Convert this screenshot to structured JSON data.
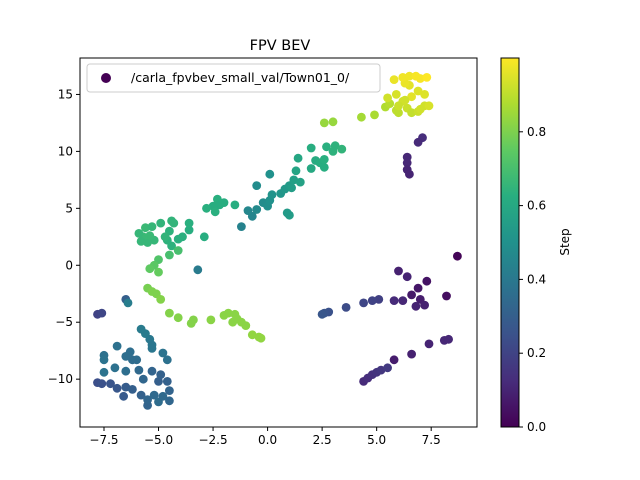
{
  "chart_data": {
    "type": "scatter",
    "title": "FPV BEV",
    "xlabel": "",
    "ylabel": "",
    "xlim": [
      -8.6,
      9.6
    ],
    "ylim": [
      -14.2,
      18.2
    ],
    "x_ticks": [
      -7.5,
      -5.0,
      -2.5,
      0.0,
      2.5,
      5.0,
      7.5
    ],
    "x_tick_labels": [
      "−7.5",
      "−5.0",
      "−2.5",
      "0.0",
      "2.5",
      "5.0",
      "7.5"
    ],
    "y_ticks": [
      -10,
      -5,
      0,
      5,
      10,
      15
    ],
    "y_tick_labels": [
      "−10",
      "−5",
      "0",
      "5",
      "10",
      "15"
    ],
    "grid": false,
    "legend": {
      "position": "top-left",
      "entries": [
        "/carla_fpvbev_small_val/Town01_0/"
      ]
    },
    "colorbar": {
      "label": "Step",
      "colormap": "viridis",
      "range": [
        0.0,
        1.0
      ],
      "ticks": [
        0.0,
        0.2,
        0.4,
        0.6,
        0.8
      ],
      "tick_labels": [
        "0.0",
        "0.2",
        "0.4",
        "0.6",
        "0.8"
      ]
    },
    "series": [
      {
        "name": "/carla_fpvbev_small_val/Town01_0/",
        "columns": [
          "x",
          "y",
          "step"
        ],
        "points": [
          [
            8.7,
            0.8,
            0.01
          ],
          [
            8.2,
            -2.7,
            0.04
          ],
          [
            7.3,
            -1.4,
            0.05
          ],
          [
            6.9,
            -2.0,
            0.06
          ],
          [
            6.6,
            -2.6,
            0.07
          ],
          [
            7.0,
            -3.0,
            0.08
          ],
          [
            7.2,
            -3.5,
            0.09
          ],
          [
            6.8,
            -3.6,
            0.1
          ],
          [
            6.2,
            -3.1,
            0.11
          ],
          [
            5.8,
            -3.1,
            0.12
          ],
          [
            6.4,
            -1.0,
            0.1
          ],
          [
            6.0,
            -0.5,
            0.09
          ],
          [
            5.8,
            -8.3,
            0.08
          ],
          [
            6.6,
            -7.8,
            0.09
          ],
          [
            7.4,
            -6.9,
            0.1
          ],
          [
            8.1,
            -6.6,
            0.11
          ],
          [
            8.3,
            -6.5,
            0.11
          ],
          [
            7.1,
            11.2,
            0.13
          ],
          [
            6.9,
            10.8,
            0.12
          ],
          [
            6.4,
            9.5,
            0.11
          ],
          [
            6.4,
            9.0,
            0.11
          ],
          [
            6.4,
            8.4,
            0.1
          ],
          [
            6.5,
            8.0,
            0.1
          ],
          [
            4.4,
            -10.2,
            0.12
          ],
          [
            4.6,
            -9.9,
            0.13
          ],
          [
            4.8,
            -9.6,
            0.14
          ],
          [
            5.0,
            -9.4,
            0.15
          ],
          [
            5.2,
            -9.2,
            0.16
          ],
          [
            5.5,
            -9.0,
            0.17
          ],
          [
            5.1,
            -3.0,
            0.19
          ],
          [
            4.8,
            -3.1,
            0.2
          ],
          [
            4.4,
            -3.3,
            0.21
          ],
          [
            3.6,
            -3.7,
            0.23
          ],
          [
            2.8,
            -4.1,
            0.25
          ],
          [
            2.6,
            -4.2,
            0.26
          ],
          [
            2.5,
            -4.3,
            0.27
          ],
          [
            -7.8,
            -10.3,
            0.24
          ],
          [
            -7.6,
            -10.4,
            0.25
          ],
          [
            -7.2,
            -10.4,
            0.26
          ],
          [
            -6.9,
            -10.8,
            0.27
          ],
          [
            -6.6,
            -11.5,
            0.28
          ],
          [
            -6.5,
            -10.7,
            0.29
          ],
          [
            -6.2,
            -10.9,
            0.3
          ],
          [
            -5.8,
            -11.4,
            0.31
          ],
          [
            -5.5,
            -12.3,
            0.32
          ],
          [
            -5.5,
            -11.8,
            0.33
          ],
          [
            -5.2,
            -11.4,
            0.34
          ],
          [
            -5.0,
            -12.0,
            0.35
          ],
          [
            -4.8,
            -11.5,
            0.34
          ],
          [
            -4.5,
            -11.9,
            0.33
          ],
          [
            -4.5,
            -11.0,
            0.32
          ],
          [
            -4.6,
            -10.2,
            0.31
          ],
          [
            -5.0,
            -10.2,
            0.3
          ],
          [
            -4.9,
            -9.6,
            0.31
          ],
          [
            -5.3,
            -9.3,
            0.32
          ],
          [
            -5.7,
            -10.0,
            0.33
          ],
          [
            -5.9,
            -9.2,
            0.34
          ],
          [
            -6.0,
            -8.3,
            0.35
          ],
          [
            -6.2,
            -8.3,
            0.35
          ],
          [
            -6.5,
            -8.0,
            0.36
          ],
          [
            -6.3,
            -7.6,
            0.36
          ],
          [
            -6.9,
            -7.1,
            0.37
          ],
          [
            -7.5,
            -7.9,
            0.37
          ],
          [
            -7.5,
            -8.3,
            0.38
          ],
          [
            -7.5,
            -9.4,
            0.38
          ],
          [
            -7.0,
            -9.0,
            0.37
          ],
          [
            -6.5,
            -9.3,
            0.36
          ],
          [
            -5.4,
            -6.5,
            0.4
          ],
          [
            -5.6,
            -6.0,
            0.41
          ],
          [
            -5.8,
            -5.6,
            0.41
          ],
          [
            -5.3,
            -7.0,
            0.39
          ],
          [
            -4.8,
            -7.7,
            0.38
          ],
          [
            -4.6,
            -8.3,
            0.37
          ],
          [
            -5.3,
            -7.3,
            0.39
          ],
          [
            -7.8,
            -4.3,
            0.2
          ],
          [
            -7.6,
            -4.2,
            0.21
          ],
          [
            -6.5,
            -3.0,
            0.3
          ],
          [
            -6.4,
            -3.3,
            0.42
          ],
          [
            -3.2,
            -0.4,
            0.41
          ],
          [
            -1.2,
            3.4,
            0.44
          ],
          [
            -0.7,
            4.3,
            0.45
          ],
          [
            -0.5,
            4.9,
            0.47
          ],
          [
            -0.2,
            5.5,
            0.48
          ],
          [
            0.0,
            5.2,
            0.49
          ],
          [
            0.1,
            5.7,
            0.5
          ],
          [
            0.2,
            6.2,
            0.51
          ],
          [
            0.6,
            6.3,
            0.52
          ],
          [
            0.8,
            6.7,
            0.53
          ],
          [
            1.0,
            7.0,
            0.54
          ],
          [
            1.1,
            6.8,
            0.55
          ],
          [
            1.2,
            7.5,
            0.56
          ],
          [
            1.5,
            7.3,
            0.57
          ],
          [
            1.3,
            8.3,
            0.58
          ],
          [
            1.4,
            9.4,
            0.59
          ],
          [
            2.0,
            8.5,
            0.6
          ],
          [
            2.2,
            9.2,
            0.61
          ],
          [
            2.4,
            9.0,
            0.62
          ],
          [
            2.6,
            8.6,
            0.62
          ],
          [
            2.6,
            9.3,
            0.63
          ],
          [
            2.7,
            10.4,
            0.63
          ],
          [
            3.0,
            10.0,
            0.64
          ],
          [
            3.1,
            10.5,
            0.64
          ],
          [
            3.4,
            10.2,
            0.65
          ],
          [
            2.0,
            10.3,
            0.62
          ],
          [
            1.0,
            4.4,
            0.55
          ],
          [
            0.9,
            4.6,
            0.54
          ],
          [
            -0.9,
            4.8,
            0.46
          ],
          [
            0.1,
            8.0,
            0.5
          ],
          [
            -0.5,
            7.0,
            0.48
          ],
          [
            -1.5,
            5.3,
            0.62
          ],
          [
            -2.0,
            5.5,
            0.62
          ],
          [
            -2.3,
            5.8,
            0.63
          ],
          [
            -2.2,
            5.3,
            0.62
          ],
          [
            -2.5,
            5.2,
            0.62
          ],
          [
            -2.4,
            4.7,
            0.63
          ],
          [
            -2.8,
            5.0,
            0.63
          ],
          [
            -2.9,
            2.5,
            0.62
          ],
          [
            -3.6,
            3.1,
            0.62
          ],
          [
            -3.6,
            3.7,
            0.63
          ],
          [
            -3.9,
            2.5,
            0.63
          ],
          [
            -4.1,
            2.3,
            0.63
          ],
          [
            -4.4,
            1.7,
            0.64
          ],
          [
            -4.6,
            2.2,
            0.64
          ],
          [
            -4.5,
            3.0,
            0.64
          ],
          [
            -4.3,
            3.7,
            0.65
          ],
          [
            -4.4,
            3.9,
            0.65
          ],
          [
            -4.9,
            3.7,
            0.65
          ],
          [
            -4.7,
            2.5,
            0.65
          ],
          [
            -5.2,
            2.2,
            0.66
          ],
          [
            -5.5,
            2.0,
            0.66
          ],
          [
            -5.4,
            2.6,
            0.67
          ],
          [
            -5.6,
            3.3,
            0.67
          ],
          [
            -5.7,
            2.5,
            0.67
          ],
          [
            -5.8,
            2.1,
            0.66
          ],
          [
            -5.9,
            2.8,
            0.66
          ],
          [
            -5.3,
            3.4,
            0.66
          ],
          [
            -4.5,
            0.9,
            0.7
          ],
          [
            -4.1,
            1.3,
            0.7
          ],
          [
            -5.0,
            0.5,
            0.72
          ],
          [
            -5.2,
            0.0,
            0.74
          ],
          [
            -5.4,
            -0.3,
            0.75
          ],
          [
            -5.0,
            -0.6,
            0.76
          ],
          [
            -5.5,
            -2.0,
            0.79
          ],
          [
            -5.3,
            -2.3,
            0.8
          ],
          [
            -5.1,
            -2.5,
            0.8
          ],
          [
            -4.9,
            -3.0,
            0.81
          ],
          [
            -4.5,
            -4.2,
            0.81
          ],
          [
            -4.1,
            -4.6,
            0.81
          ],
          [
            -3.5,
            -5.1,
            0.81
          ],
          [
            -3.4,
            -4.8,
            0.81
          ],
          [
            -2.6,
            -4.8,
            0.82
          ],
          [
            -2.0,
            -4.4,
            0.82
          ],
          [
            -1.8,
            -4.2,
            0.82
          ],
          [
            -1.5,
            -4.3,
            0.82
          ],
          [
            -1.4,
            -4.7,
            0.82
          ],
          [
            -1.6,
            -5.0,
            0.82
          ],
          [
            -1.2,
            -5.0,
            0.82
          ],
          [
            -0.7,
            -6.1,
            0.83
          ],
          [
            -0.4,
            -6.3,
            0.83
          ],
          [
            -0.3,
            -6.4,
            0.83
          ],
          [
            -1.0,
            -5.3,
            0.82
          ],
          [
            2.6,
            12.5,
            0.84
          ],
          [
            3.0,
            12.6,
            0.84
          ],
          [
            4.3,
            13.0,
            0.86
          ],
          [
            4.9,
            13.2,
            0.87
          ],
          [
            5.4,
            13.9,
            0.88
          ],
          [
            5.6,
            14.2,
            0.89
          ],
          [
            5.9,
            13.6,
            0.9
          ],
          [
            6.0,
            13.4,
            0.9
          ],
          [
            6.4,
            13.8,
            0.92
          ],
          [
            6.6,
            13.4,
            0.91
          ],
          [
            6.9,
            13.5,
            0.92
          ],
          [
            7.0,
            13.7,
            0.93
          ],
          [
            7.2,
            14.0,
            0.93
          ],
          [
            7.4,
            14.0,
            0.94
          ],
          [
            7.2,
            15.0,
            0.95
          ],
          [
            6.9,
            15.3,
            0.95
          ],
          [
            6.6,
            14.8,
            0.96
          ],
          [
            6.5,
            15.8,
            0.96
          ],
          [
            6.3,
            16.0,
            0.97
          ],
          [
            6.2,
            16.5,
            0.98
          ],
          [
            6.5,
            16.6,
            0.98
          ],
          [
            6.8,
            16.6,
            0.99
          ],
          [
            7.0,
            16.4,
            0.99
          ],
          [
            7.3,
            16.5,
            1.0
          ],
          [
            5.8,
            16.3,
            0.97
          ],
          [
            5.5,
            14.7,
            0.93
          ],
          [
            5.9,
            15.0,
            0.94
          ],
          [
            6.2,
            14.4,
            0.93
          ],
          [
            6.0,
            14.0,
            0.92
          ],
          [
            6.3,
            14.5,
            0.93
          ]
        ]
      }
    ]
  }
}
